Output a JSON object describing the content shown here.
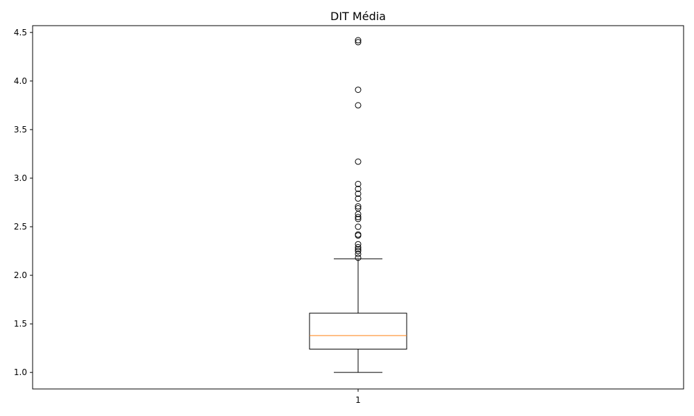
{
  "chart_data": {
    "type": "box",
    "title": "DIT Média",
    "xlabel": "",
    "ylabel": "",
    "categories": [
      "1"
    ],
    "ylim": [
      0.83,
      4.57
    ],
    "yticks": [
      1.0,
      1.5,
      2.0,
      2.5,
      3.0,
      3.5,
      4.0,
      4.5
    ],
    "ytick_labels": [
      "1.0",
      "1.5",
      "2.0",
      "2.5",
      "3.0",
      "3.5",
      "4.0",
      "4.5"
    ],
    "grid": false,
    "boxes": [
      {
        "category": "1",
        "whisker_low": 1.0,
        "q1": 1.24,
        "median": 1.38,
        "q3": 1.61,
        "whisker_high": 2.17,
        "outliers": [
          2.18,
          2.22,
          2.25,
          2.27,
          2.29,
          2.32,
          2.41,
          2.42,
          2.5,
          2.58,
          2.6,
          2.63,
          2.69,
          2.71,
          2.79,
          2.84,
          2.89,
          2.94,
          3.17,
          3.75,
          3.91,
          4.4,
          4.42
        ]
      }
    ],
    "colors": {
      "box": "#000000",
      "median": "#ff7f0e",
      "whisker": "#000000",
      "flier_edge": "#000000"
    }
  }
}
